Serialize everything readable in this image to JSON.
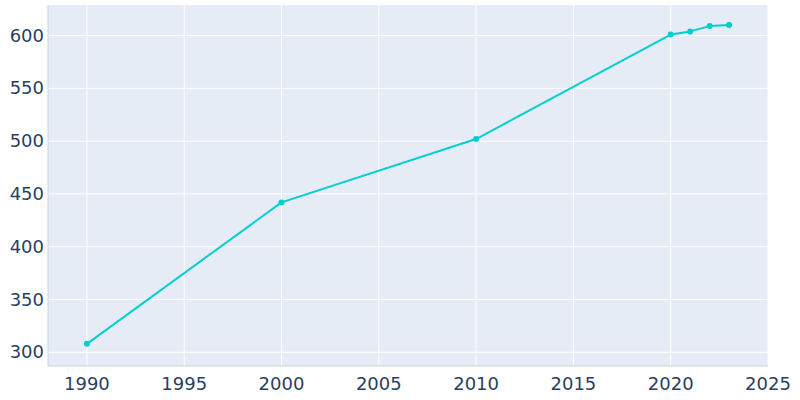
{
  "chart_data": {
    "type": "line",
    "x": [
      1990,
      2000,
      2010,
      2020,
      2021,
      2022,
      2023
    ],
    "values": [
      308,
      442,
      502,
      601,
      604,
      609,
      610
    ],
    "color": "#00cfcf",
    "marker": "circle",
    "xlim": [
      1988,
      2025
    ],
    "xticks": [
      1990,
      1995,
      2000,
      2005,
      2010,
      2015,
      2020,
      2025
    ],
    "ylim": [
      287,
      629
    ],
    "yticks": [
      300,
      350,
      400,
      450,
      500,
      550,
      600
    ],
    "grid": true
  }
}
